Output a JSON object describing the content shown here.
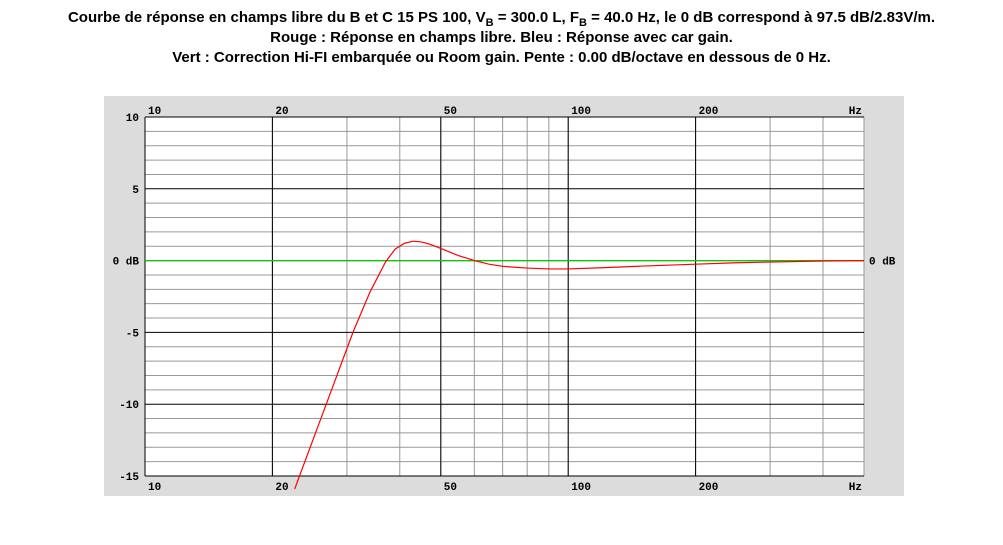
{
  "title": {
    "line1_pre": "Courbe de réponse en champs libre du B et C 15 PS 100, V",
    "line1_vb_sub": "B",
    "line1_mid": " = 300.0 L, F",
    "line1_fb_sub": "B",
    "line1_post": " = 40.0 Hz, le 0 dB correspond à 97.5 dB/2.83V/m.",
    "line2": "Rouge : Réponse en champs libre. Bleu : Réponse avec car gain.",
    "line3": "Vert : Correction Hi-FI embarquée ou Room gain. Pente : 0.00 dB/octave en dessous de 0 Hz."
  },
  "chart_data": {
    "type": "line",
    "x_scale": "log",
    "xlim": [
      10,
      500
    ],
    "ylim": [
      -15,
      10
    ],
    "grid": true,
    "x_tick_labels": [
      {
        "x": 10,
        "label": "10"
      },
      {
        "x": 20,
        "label": "20"
      },
      {
        "x": 50,
        "label": "50"
      },
      {
        "x": 100,
        "label": "100"
      },
      {
        "x": 200,
        "label": "200"
      }
    ],
    "x_unit_label": "Hz",
    "y_tick_labels": [
      {
        "y": 10,
        "label": "10"
      },
      {
        "y": 5,
        "label": "5"
      },
      {
        "y": 0,
        "label": "0 dB"
      },
      {
        "y": -5,
        "label": "-5"
      },
      {
        "y": -10,
        "label": "-10"
      },
      {
        "y": -15,
        "label": "-15"
      }
    ],
    "right_label": {
      "y": 0,
      "label": "0 dB"
    },
    "series": [
      {
        "color": "#ff0000",
        "x": [
          22,
          25,
          28,
          31,
          34,
          37,
          39,
          41,
          43,
          45,
          47,
          50,
          55,
          60,
          65,
          70,
          80,
          90,
          100,
          120,
          150,
          200,
          250,
          300,
          400,
          500
        ],
        "y": [
          -16.8,
          -12.4,
          -8.5,
          -5.0,
          -2.2,
          -0.1,
          0.8,
          1.2,
          1.35,
          1.3,
          1.15,
          0.85,
          0.35,
          0.0,
          -0.25,
          -0.4,
          -0.52,
          -0.58,
          -0.58,
          -0.5,
          -0.38,
          -0.25,
          -0.15,
          -0.1,
          -0.03,
          0.0
        ]
      },
      {
        "color": "#00cc00",
        "x": [
          10,
          500
        ],
        "y": [
          0,
          0
        ]
      }
    ],
    "colors": {
      "panel": "#dcdcdc",
      "plot_bg": "#ffffff",
      "major_grid": "#000000",
      "minor_grid": "#999999"
    }
  }
}
